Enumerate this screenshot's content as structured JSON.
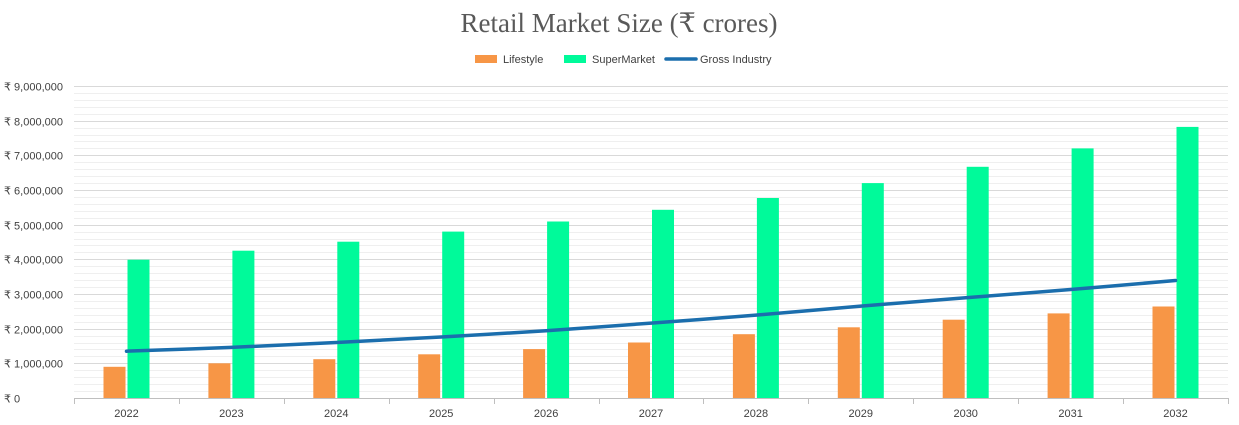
{
  "chart_data": {
    "type": "bar",
    "title": "Retail Market Size (₹ crores)",
    "categories": [
      "2022",
      "2023",
      "2024",
      "2025",
      "2026",
      "2027",
      "2028",
      "2029",
      "2030",
      "2031",
      "2032"
    ],
    "series": [
      {
        "name": "Lifestyle",
        "kind": "bar",
        "color": "#F79646",
        "values": [
          900000,
          1000000,
          1120000,
          1260000,
          1410000,
          1600000,
          1840000,
          2040000,
          2260000,
          2440000,
          2640000
        ]
      },
      {
        "name": "SuperMarket",
        "kind": "bar",
        "color": "#00FA9A",
        "values": [
          3990000,
          4250000,
          4510000,
          4800000,
          5090000,
          5430000,
          5770000,
          6200000,
          6670000,
          7200000,
          7820000
        ]
      },
      {
        "name": "Gross Industry",
        "kind": "line",
        "color": "#1B6EAD",
        "values": [
          1350000,
          1460000,
          1600000,
          1760000,
          1940000,
          2160000,
          2390000,
          2650000,
          2890000,
          3130000,
          3390000
        ]
      }
    ],
    "ylim": [
      0,
      9000000
    ],
    "yticks": [
      0,
      1000000,
      2000000,
      3000000,
      4000000,
      5000000,
      6000000,
      7000000,
      8000000,
      9000000
    ],
    "ytick_labels": [
      "₹ 0",
      "₹ 1,000,000",
      "₹ 2,000,000",
      "₹ 3,000,000",
      "₹ 4,000,000",
      "₹ 5,000,000",
      "₹ 6,000,000",
      "₹ 7,000,000",
      "₹ 8,000,000",
      "₹ 9,000,000"
    ],
    "minor_step": 200000,
    "legend_position": "top-center",
    "xlabel": "",
    "ylabel": ""
  }
}
